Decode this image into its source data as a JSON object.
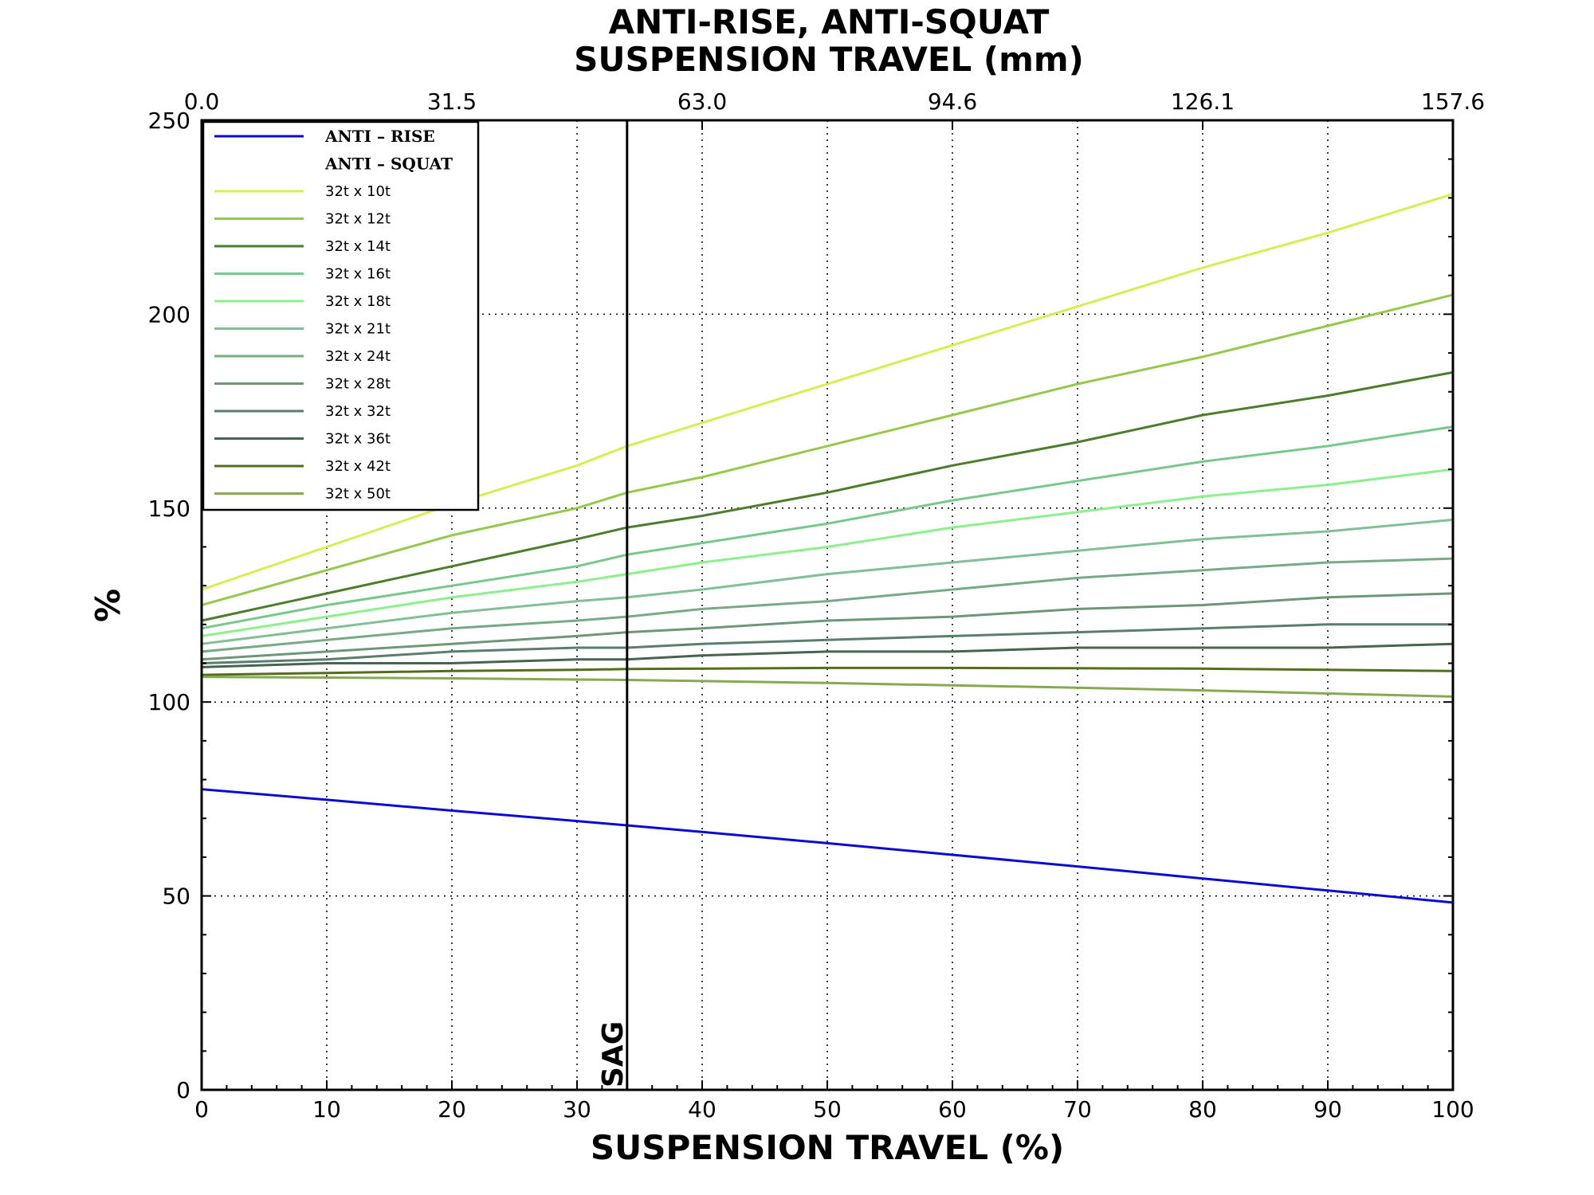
{
  "chart_data": {
    "type": "line",
    "title": [
      "ANTI-RISE, ANTI-SQUAT",
      "SUSPENSION TRAVEL (mm)"
    ],
    "xlabel": "SUSPENSION TRAVEL (%)",
    "ylabel": "%",
    "xlim": [
      0,
      100
    ],
    "ylim": [
      0,
      250
    ],
    "x_ticks": [
      "0",
      "10",
      "20",
      "30",
      "40",
      "50",
      "60",
      "70",
      "80",
      "90",
      "100"
    ],
    "y_ticks": [
      "0",
      "50",
      "100",
      "150",
      "200",
      "250"
    ],
    "top_ticks": [
      {
        "x": 0,
        "label": "0.0"
      },
      {
        "x": 20,
        "label": "31.5"
      },
      {
        "x": 40,
        "label": "63.0"
      },
      {
        "x": 60,
        "label": "94.6"
      },
      {
        "x": 80,
        "label": "126.1"
      },
      {
        "x": 100,
        "label": "157.6"
      }
    ],
    "grid": true,
    "legend_position": "top-left",
    "sag": {
      "x": 34,
      "label": "SAG"
    },
    "legend_header": [
      "ANTI – RISE",
      "ANTI – SQUAT"
    ],
    "x": [
      0,
      10,
      20,
      30,
      34,
      40,
      50,
      60,
      70,
      80,
      90,
      100
    ],
    "series": [
      {
        "name": "ANTI – RISE",
        "color": "#0a0ad2",
        "values": [
          77.5,
          74.8,
          72.0,
          69.3,
          68.2,
          66.5,
          63.6,
          60.6,
          57.6,
          54.5,
          51.4,
          48.3
        ]
      },
      {
        "name": "32t x 10t",
        "color": "#d2f050",
        "values": [
          129,
          140,
          151,
          161,
          166,
          172,
          182,
          192,
          202,
          212,
          221,
          231
        ]
      },
      {
        "name": "32t x 12t",
        "color": "#96c84b",
        "values": [
          125,
          134,
          143,
          150,
          154,
          158,
          166,
          174,
          182,
          189,
          197,
          205
        ]
      },
      {
        "name": "32t x 14t",
        "color": "#4b7d2d",
        "values": [
          121,
          128,
          135,
          142,
          145,
          148,
          154,
          161,
          167,
          174,
          179,
          185
        ]
      },
      {
        "name": "32t x 16t",
        "color": "#78c88c",
        "values": [
          119,
          125,
          130,
          135,
          138,
          141,
          146,
          152,
          157,
          162,
          166,
          171
        ]
      },
      {
        "name": "32t x 18t",
        "color": "#8cf08c",
        "values": [
          117,
          122,
          127,
          131,
          133,
          136,
          140,
          145,
          149,
          153,
          156,
          160
        ]
      },
      {
        "name": "32t x 21t",
        "color": "#82be96",
        "values": [
          115,
          119,
          123,
          126,
          127,
          129,
          133,
          136,
          139,
          142,
          144,
          147
        ]
      },
      {
        "name": "32t x 24t",
        "color": "#78aa87",
        "values": [
          113,
          116,
          119,
          121,
          122,
          124,
          126,
          129,
          132,
          134,
          136,
          137
        ]
      },
      {
        "name": "32t x 28t",
        "color": "#6e9678",
        "values": [
          111,
          113,
          115,
          117,
          118,
          119,
          121,
          122,
          124,
          125,
          127,
          128
        ]
      },
      {
        "name": "32t x 32t",
        "color": "#5a7d6e",
        "values": [
          110,
          111,
          113,
          114,
          114,
          115,
          116,
          117,
          118,
          119,
          120,
          120
        ]
      },
      {
        "name": "32t x 36t",
        "color": "#466450",
        "values": [
          109,
          110,
          110,
          111,
          111,
          112,
          113,
          113,
          114,
          114,
          114,
          115
        ]
      },
      {
        "name": "32t x 42t",
        "color": "#556e1e",
        "values": [
          107,
          107.5,
          108,
          108.3,
          108.5,
          108.6,
          108.8,
          108.8,
          108.7,
          108.6,
          108.3,
          108
        ]
      },
      {
        "name": "32t x 50t",
        "color": "#87aa50",
        "values": [
          106.5,
          106.3,
          106.1,
          105.8,
          105.7,
          105.4,
          104.9,
          104.3,
          103.7,
          103,
          102.2,
          101.4
        ]
      }
    ]
  }
}
